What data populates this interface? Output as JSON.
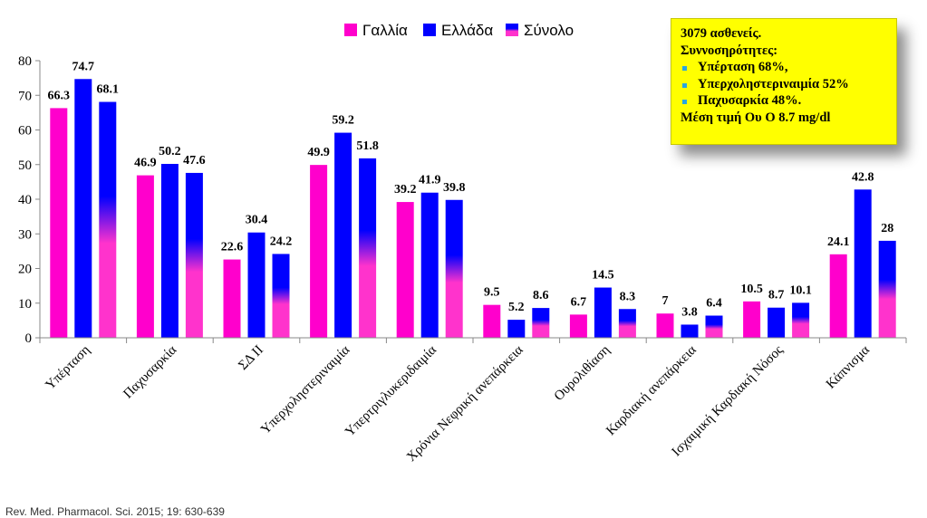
{
  "chart_data": {
    "type": "bar",
    "categories": [
      "Υπέρταση",
      "Παχυσαρκία",
      "ΣΔ ΙΙ",
      "Υπερχοληστεριναιμία",
      "Υπερτριγλυκεριδαιμία",
      "Χρόνια Νεφρική ανεπάρκεια",
      "Ουρολιθίαση",
      "Καρδιακή ανεπάρκεια",
      "Ισχαιμική Καρδιακή Νόσος",
      "Κάπνισμα"
    ],
    "series": [
      {
        "name": "Γαλλία",
        "values": [
          66.3,
          46.9,
          22.6,
          49.9,
          39.2,
          9.5,
          6.7,
          7,
          10.5,
          24.1
        ],
        "labels": [
          "66.3",
          "46.9",
          "22.6",
          "49.9",
          "39.2",
          "9.5",
          "6.7",
          "7",
          "10.5",
          "24.1"
        ]
      },
      {
        "name": "Ελλάδα",
        "values": [
          74.7,
          50.2,
          30.4,
          59.2,
          41.9,
          5.2,
          14.5,
          3.8,
          8.7,
          42.8
        ],
        "labels": [
          "74.7",
          "50.2",
          "30.4",
          "59.2",
          "41.9",
          "5.2",
          "14.5",
          "3.8",
          "8.7",
          "42.8"
        ]
      },
      {
        "name": "Σύνολο",
        "values": [
          68.1,
          47.6,
          24.2,
          51.8,
          39.8,
          8.6,
          8.3,
          6.4,
          10.1,
          28
        ],
        "labels": [
          "68.1",
          "47.6",
          "24.2",
          "51.8",
          "39.8",
          "8.6",
          "8.3",
          "6.4",
          "10.1",
          "28"
        ]
      }
    ],
    "yticks": [
      0,
      10,
      20,
      30,
      40,
      50,
      60,
      70,
      80
    ],
    "ylim": [
      0,
      80
    ],
    "legend_position": "top-center",
    "grid": false,
    "colors": {
      "Γαλλία": "#ff00cc",
      "Ελλάδα": "#0000ff",
      "Σύνολο_top": "#0000ff",
      "Σύνολο_bottom": "#ff33cc"
    }
  },
  "infobox": {
    "line1": "3079 ασθενείς.",
    "line2": "Συννοσηρότητες:",
    "bullets": [
      "Υπέρταση 68%,",
      "Υπερχοληστεριναιμία 52%",
      "Παχυσαρκία 48%."
    ],
    "line_last": "Μέση τιμή Ου Ο  8.7 mg/dl"
  },
  "source": "Rev. Med. Pharmacol. Sci. 2015; 19: 630-639"
}
